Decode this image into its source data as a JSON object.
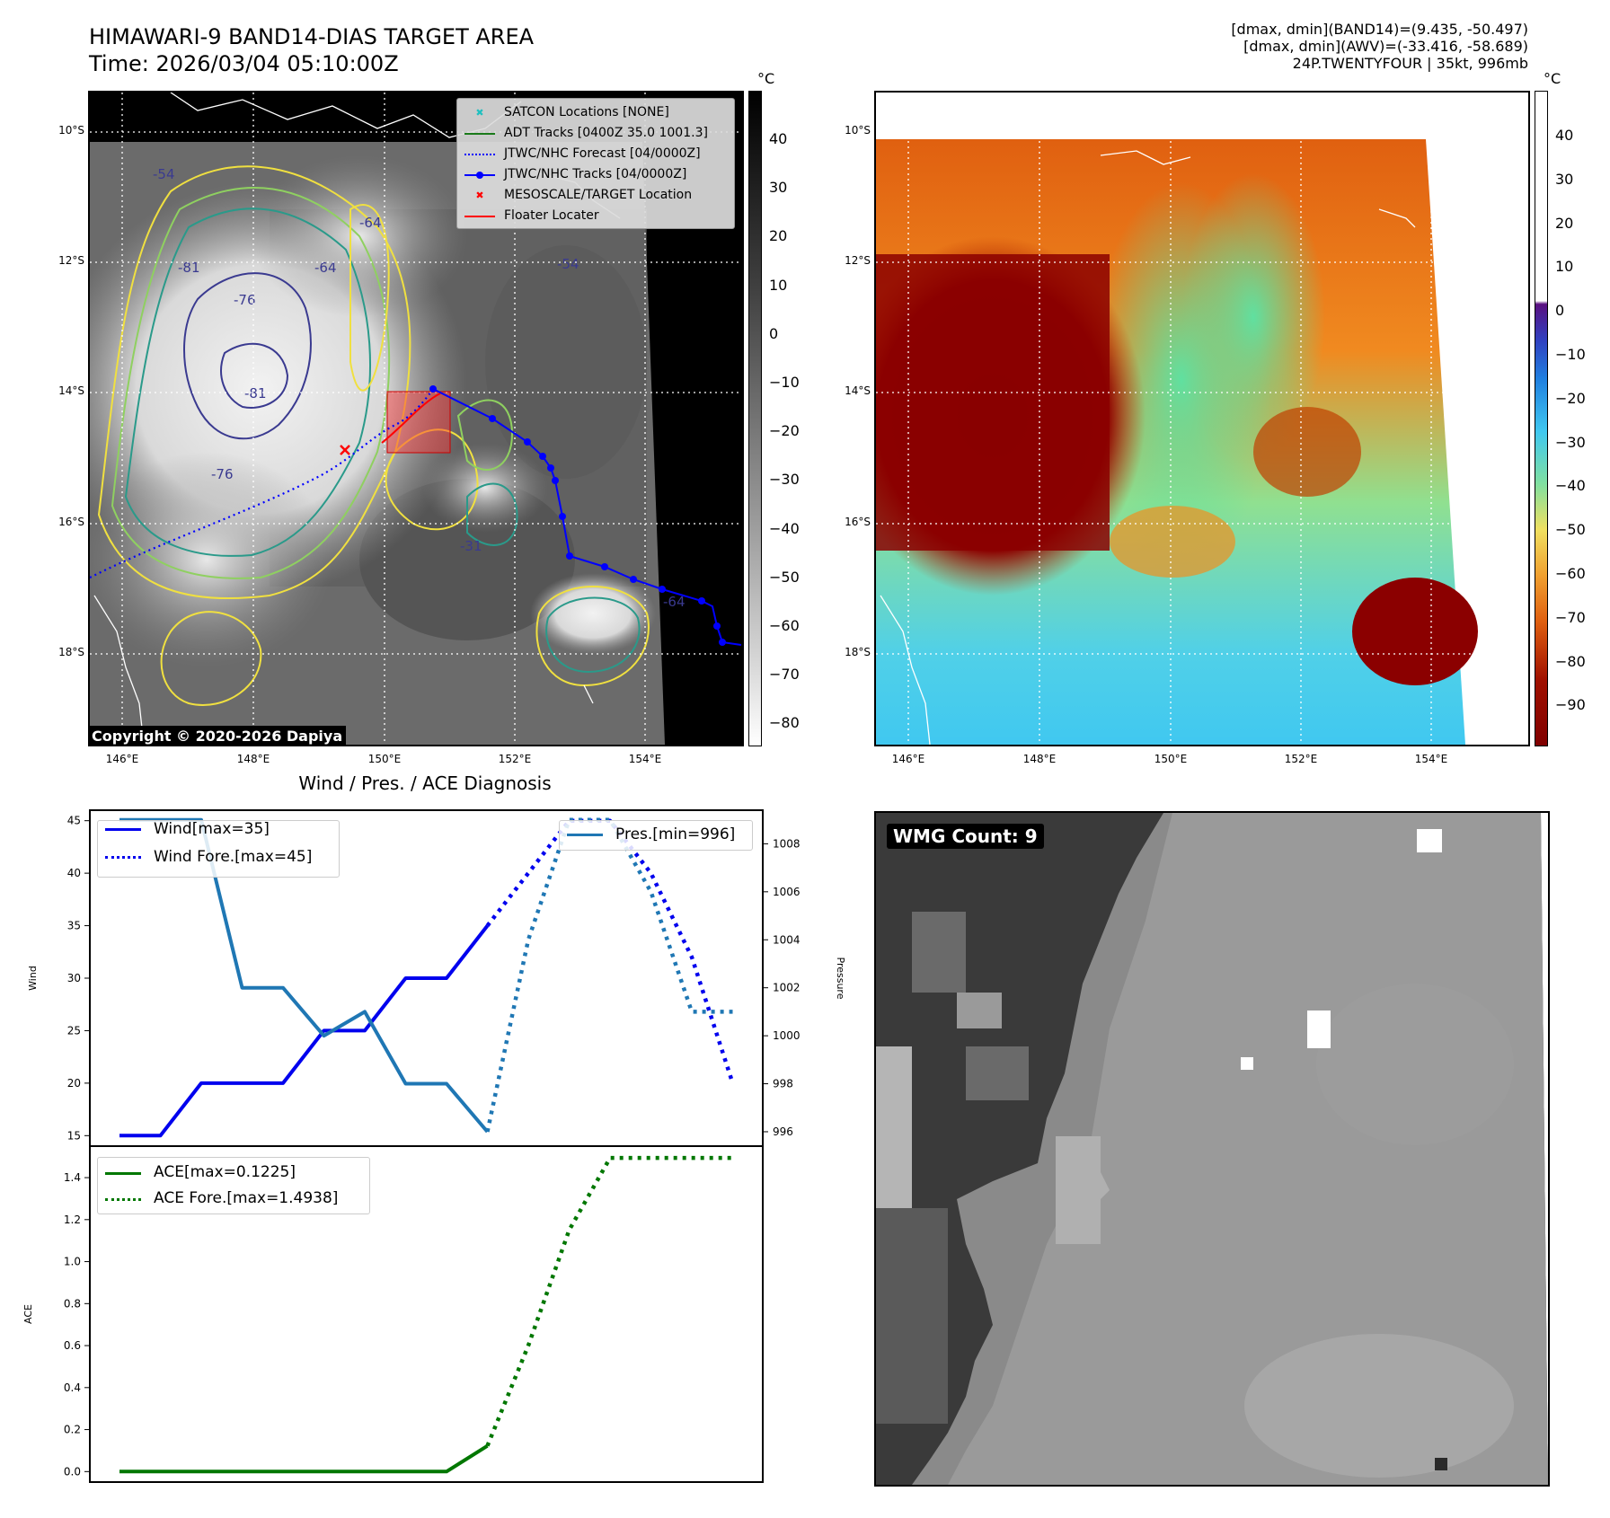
{
  "header": {
    "title_line1": "HIMAWARI-9 BAND14-DIAS TARGET AREA",
    "title_line2": "Time: 2026/03/04 05:10:00Z",
    "stat_line1": "[dmax, dmin](BAND14)=(9.435, -50.497)",
    "stat_line2": "[dmax, dmin](AWV)=(-33.416, -58.689)",
    "stat_line3": "24P.TWENTYFOUR | 35kt, 996mb"
  },
  "map": {
    "lat_labels": [
      "10°S",
      "12°S",
      "14°S",
      "16°S",
      "18°S"
    ],
    "lon_labels": [
      "146°E",
      "148°E",
      "150°E",
      "152°E",
      "154°E"
    ],
    "copyright": "Copyright © 2020-2026 Dapiya",
    "contour_labels": [
      "-54",
      "-64",
      "-76",
      "-81",
      "-76",
      "-54",
      "-64",
      "-31",
      "-64",
      "-81"
    ],
    "legend": [
      {
        "label": "SATCON Locations [NONE]",
        "color": "#20c0c0",
        "marker": "x-marker-icon"
      },
      {
        "label": "ADT Tracks [0400Z 35.0 1001.3]",
        "color": "#1a7a1a",
        "marker": "solid-line-icon"
      },
      {
        "label": "JTWC/NHC Forecast [04/0000Z]",
        "color": "#0000ff",
        "marker": "dotted-line-icon"
      },
      {
        "label": "JTWC/NHC Tracks [04/0000Z]",
        "color": "#0000ff",
        "marker": "line-dot-icon"
      },
      {
        "label": "MESOSCALE/TARGET Location",
        "color": "#ff0000",
        "marker": "x-marker-icon"
      },
      {
        "label": "Floater Locater",
        "color": "#ff0000",
        "marker": "solid-line-icon"
      }
    ]
  },
  "colorbars": {
    "unit": "°C",
    "bw_ticks": [
      "40",
      "30",
      "20",
      "10",
      "0",
      "−10",
      "−20",
      "−30",
      "−40",
      "−50",
      "−60",
      "−70",
      "−80"
    ],
    "color_ticks": [
      "40",
      "30",
      "20",
      "10",
      "0",
      "−10",
      "−20",
      "−30",
      "−40",
      "−50",
      "−60",
      "−70",
      "−80",
      "−90"
    ]
  },
  "chart_data": [
    {
      "type": "line",
      "title": "Wind / Pres. / ACE Diagnosis",
      "ylabel": "Wind",
      "y2label": "Pressure",
      "ylim": [
        14,
        46
      ],
      "y2lim": [
        995.4,
        1009.4
      ],
      "yticks": [
        15,
        20,
        25,
        30,
        35,
        40,
        45
      ],
      "y2ticks": [
        996,
        998,
        1000,
        1002,
        1004,
        1006,
        1008
      ],
      "series": [
        {
          "name": "Wind[max=35]",
          "color": "#0000ee",
          "style": "solid",
          "x": [
            0,
            1,
            2,
            3,
            4,
            5,
            6,
            7,
            8,
            9
          ],
          "values": [
            15,
            15,
            20,
            20,
            20,
            25,
            25,
            30,
            30,
            35
          ]
        },
        {
          "name": "Wind Fore.[max=45]",
          "color": "#0000ee",
          "style": "dotted",
          "x": [
            9,
            10,
            11,
            12,
            13,
            14,
            15
          ],
          "values": [
            35,
            40,
            45,
            45,
            40,
            32,
            20
          ]
        },
        {
          "name": "Pres.[min=996]",
          "color": "#1f77b4",
          "style": "solid",
          "axis": "right",
          "x": [
            0,
            1,
            2,
            3,
            4,
            5,
            6,
            7,
            8,
            9
          ],
          "values": [
            1009,
            1009,
            1009,
            1002,
            1002,
            1000,
            1001,
            998,
            998,
            996
          ]
        },
        {
          "name": "",
          "color": "#1f77b4",
          "style": "dotted",
          "axis": "right",
          "x": [
            9,
            10,
            11,
            12,
            13,
            14,
            15
          ],
          "values": [
            996,
            1004,
            1009,
            1009,
            1006,
            1001,
            1001
          ]
        }
      ]
    },
    {
      "type": "line",
      "ylabel": "ACE",
      "ylim": [
        -0.05,
        1.55
      ],
      "yticks": [
        "0.0",
        "0.2",
        "0.4",
        "0.6",
        "0.8",
        "1.0",
        "1.2",
        "1.4"
      ],
      "series": [
        {
          "name": "ACE[max=0.1225]",
          "color": "#007700",
          "style": "solid",
          "x": [
            0,
            1,
            2,
            3,
            4,
            5,
            6,
            7,
            8,
            9
          ],
          "values": [
            0,
            0,
            0,
            0,
            0,
            0,
            0,
            0,
            0,
            0.1225
          ]
        },
        {
          "name": "ACE Fore.[max=1.4938]",
          "color": "#007700",
          "style": "dotted",
          "x": [
            9,
            10,
            11,
            12,
            13,
            14,
            15
          ],
          "values": [
            0.1225,
            0.6,
            1.15,
            1.4938,
            1.4938,
            1.4938,
            1.4938
          ]
        }
      ]
    }
  ],
  "wmg": {
    "label": "WMG Count: 9"
  }
}
